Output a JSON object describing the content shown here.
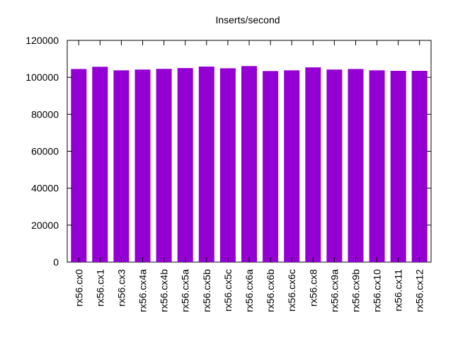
{
  "chart_data": {
    "type": "bar",
    "title": "Inserts/second",
    "xlabel": "",
    "ylabel": "",
    "ylim": [
      0,
      120000
    ],
    "yticks": [
      0,
      20000,
      40000,
      60000,
      80000,
      100000,
      120000
    ],
    "grid": false,
    "bar_color": "#9400D3",
    "categories": [
      "rx56.cx0",
      "rx56.cx1",
      "rx56.cx3",
      "rx56.cx4a",
      "rx56.cx4b",
      "rx56.cx5a",
      "rx56.cx5b",
      "rx56.cx5c",
      "rx56.cx6a",
      "rx56.cx6b",
      "rx56.cx6c",
      "rx56.cx8",
      "rx56.cx9a",
      "rx56.cx9b",
      "rx56.cx10",
      "rx56.cx11",
      "rx56.cx12"
    ],
    "values": [
      104500,
      105700,
      103800,
      104200,
      104600,
      105000,
      105800,
      104900,
      106100,
      103400,
      103800,
      105400,
      104200,
      104500,
      103800,
      103500,
      103500
    ]
  }
}
